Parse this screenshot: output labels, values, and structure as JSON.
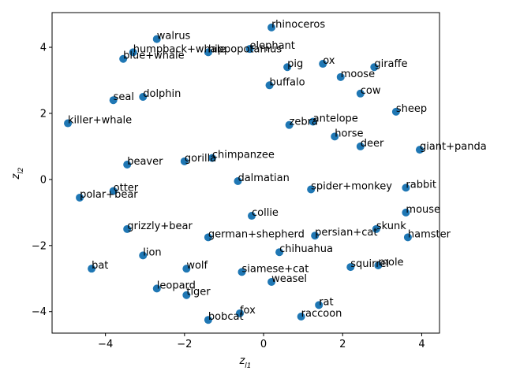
{
  "chart_data": {
    "type": "scatter",
    "xlabel": "z_l1",
    "ylabel": "z_l2",
    "xlim": [
      -5.35,
      4.45
    ],
    "ylim": [
      -4.65,
      5.05
    ],
    "xticks": [
      -4,
      -2,
      0,
      2,
      4
    ],
    "yticks": [
      -4,
      -2,
      0,
      2,
      4
    ],
    "grid": false,
    "point_color": "#1f77b4",
    "points": [
      {
        "label": "rhinoceros",
        "x": 0.2,
        "y": 4.6
      },
      {
        "label": "walrus",
        "x": -2.7,
        "y": 4.25
      },
      {
        "label": "elephant",
        "x": -0.35,
        "y": 3.95
      },
      {
        "label": "hippopotamus",
        "x": -1.4,
        "y": 3.85
      },
      {
        "label": "humpback+whale",
        "x": -3.3,
        "y": 3.85
      },
      {
        "label": "blue+whale",
        "x": -3.55,
        "y": 3.65
      },
      {
        "label": "pig",
        "x": 0.6,
        "y": 3.4
      },
      {
        "label": "ox",
        "x": 1.5,
        "y": 3.5
      },
      {
        "label": "giraffe",
        "x": 2.8,
        "y": 3.4
      },
      {
        "label": "moose",
        "x": 1.95,
        "y": 3.1
      },
      {
        "label": "buffalo",
        "x": 0.15,
        "y": 2.85
      },
      {
        "label": "cow",
        "x": 2.45,
        "y": 2.6
      },
      {
        "label": "dolphin",
        "x": -3.05,
        "y": 2.5
      },
      {
        "label": "seal",
        "x": -3.8,
        "y": 2.4
      },
      {
        "label": "sheep",
        "x": 3.35,
        "y": 2.05
      },
      {
        "label": "killer+whale",
        "x": -4.95,
        "y": 1.7
      },
      {
        "label": "zebra",
        "x": 0.65,
        "y": 1.65
      },
      {
        "label": "antelope",
        "x": 1.25,
        "y": 1.75
      },
      {
        "label": "horse",
        "x": 1.8,
        "y": 1.3
      },
      {
        "label": "deer",
        "x": 2.45,
        "y": 1.0
      },
      {
        "label": "giant+panda",
        "x": 3.95,
        "y": 0.9
      },
      {
        "label": "chimpanzee",
        "x": -1.3,
        "y": 0.65
      },
      {
        "label": "gorilla",
        "x": -2.0,
        "y": 0.55
      },
      {
        "label": "beaver",
        "x": -3.45,
        "y": 0.45
      },
      {
        "label": "dalmatian",
        "x": -0.65,
        "y": -0.05
      },
      {
        "label": "spider+monkey",
        "x": 1.2,
        "y": -0.3
      },
      {
        "label": "rabbit",
        "x": 3.6,
        "y": -0.25
      },
      {
        "label": "otter",
        "x": -3.8,
        "y": -0.35
      },
      {
        "label": "polar+bear",
        "x": -4.65,
        "y": -0.55
      },
      {
        "label": "mouse",
        "x": 3.6,
        "y": -1.0
      },
      {
        "label": "collie",
        "x": -0.3,
        "y": -1.1
      },
      {
        "label": "grizzly+bear",
        "x": -3.45,
        "y": -1.5
      },
      {
        "label": "skunk",
        "x": 2.85,
        "y": -1.5
      },
      {
        "label": "german+shepherd",
        "x": -1.4,
        "y": -1.75
      },
      {
        "label": "persian+cat",
        "x": 1.3,
        "y": -1.7
      },
      {
        "label": "hamster",
        "x": 3.65,
        "y": -1.75
      },
      {
        "label": "chihuahua",
        "x": 0.4,
        "y": -2.2
      },
      {
        "label": "lion",
        "x": -3.05,
        "y": -2.3
      },
      {
        "label": "squirrel",
        "x": 2.2,
        "y": -2.65
      },
      {
        "label": "mole",
        "x": 2.9,
        "y": -2.6
      },
      {
        "label": "bat",
        "x": -4.35,
        "y": -2.7
      },
      {
        "label": "wolf",
        "x": -1.95,
        "y": -2.7
      },
      {
        "label": "siamese+cat",
        "x": -0.55,
        "y": -2.8
      },
      {
        "label": "weasel",
        "x": 0.2,
        "y": -3.1
      },
      {
        "label": "leopard",
        "x": -2.7,
        "y": -3.3
      },
      {
        "label": "tiger",
        "x": -1.95,
        "y": -3.5
      },
      {
        "label": "rat",
        "x": 1.4,
        "y": -3.8
      },
      {
        "label": "fox",
        "x": -0.6,
        "y": -4.05
      },
      {
        "label": "raccoon",
        "x": 0.95,
        "y": -4.15
      },
      {
        "label": "bobcat",
        "x": -1.4,
        "y": -4.25
      }
    ]
  }
}
